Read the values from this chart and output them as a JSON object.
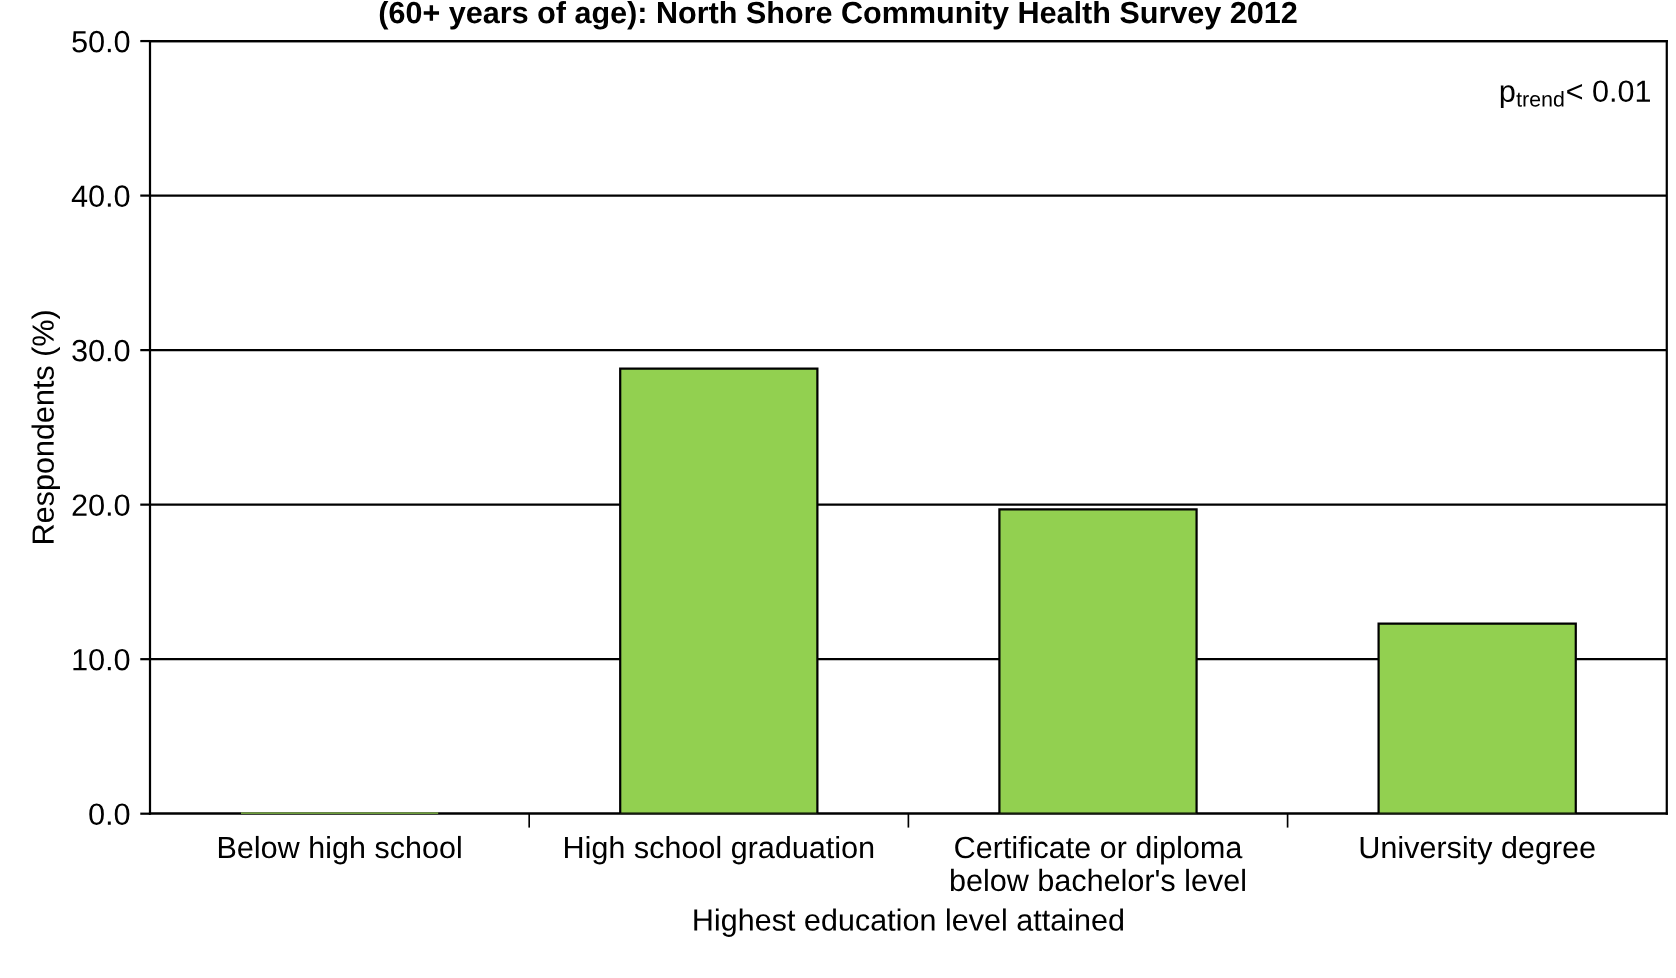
{
  "chart_data": {
    "type": "bar",
    "title": "(60+ years of age): North Shore Community Health Survey 2012",
    "xlabel": "Highest education level attained",
    "ylabel": "Respondents (%)",
    "categories": [
      "Below high school",
      "High school graduation",
      "Certificate or diploma\nbelow bachelor's level",
      "University degree"
    ],
    "values": [
      0.0,
      28.8,
      19.7,
      12.3
    ],
    "color": "#92d050",
    "ylim": [
      0,
      50
    ],
    "yticks": [
      {
        "value": 0,
        "label": "0.0"
      },
      {
        "value": 10,
        "label": "10.0"
      },
      {
        "value": 20,
        "label": "20.0"
      },
      {
        "value": 30,
        "label": "30.0"
      },
      {
        "value": 40,
        "label": "40.0"
      },
      {
        "value": 50,
        "label": "50.0"
      }
    ],
    "grid": "y",
    "annotations": [
      "p$_{trend}$< 0.01"
    ]
  }
}
